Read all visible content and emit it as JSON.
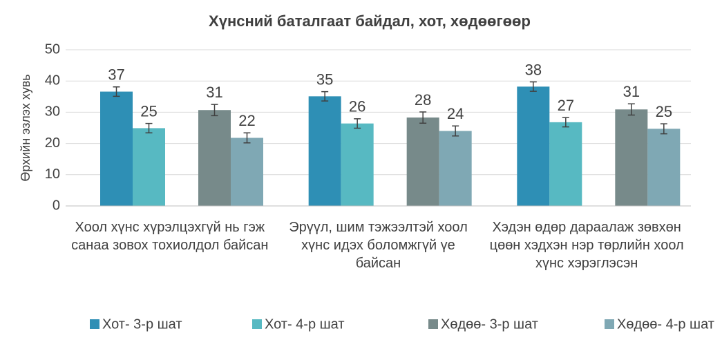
{
  "chart_data": {
    "type": "bar",
    "title": "Хүнсний баталгаат байдал, хот, хөдөөгөөр",
    "y_label": "Өрхийн эзлэх хувь",
    "categories": [
      "Хоол хүнс хүрэлцэхгүй нь гэж санаа зовох тохиолдол байсан",
      "Эрүүл, шим тэжээлтэй хоол хүнс идэх боломжгүй үе байсан",
      "Хэдэн өдөр дараалаж зөвхөн цөөн хэдхэн нэр төрлийн хоол хүнс хэрэглэсэн"
    ],
    "series": [
      {
        "name": "Хот- 3-р шат",
        "color": "#2e8fb5",
        "values": [
          36.6,
          35.1,
          38.2
        ],
        "value_labels": [
          "37",
          "35",
          "38"
        ],
        "errors": [
          1.5,
          1.5,
          1.5
        ]
      },
      {
        "name": "Хот- 4-р шат",
        "color": "#57b9c2",
        "values": [
          24.9,
          26.4,
          26.8
        ],
        "value_labels": [
          "25",
          "26",
          "27"
        ],
        "errors": [
          1.5,
          1.5,
          1.5
        ]
      },
      {
        "name": "Хөдөө- 3-р шат",
        "color": "#778a8a",
        "values": [
          30.7,
          28.3,
          30.9
        ],
        "value_labels": [
          "31",
          "28",
          "31"
        ],
        "errors": [
          1.8,
          1.8,
          1.8
        ]
      },
      {
        "name": "Хөдөө- 4-р шат",
        "color": "#7fa8b4",
        "values": [
          21.8,
          24.0,
          24.7
        ],
        "value_labels": [
          "22",
          "24",
          "25"
        ],
        "errors": [
          1.6,
          1.6,
          1.6
        ]
      }
    ],
    "ylim": [
      0,
      50
    ],
    "yticks": [
      0,
      10,
      20,
      30,
      40,
      50
    ],
    "grid": true,
    "legend": "bottom"
  }
}
